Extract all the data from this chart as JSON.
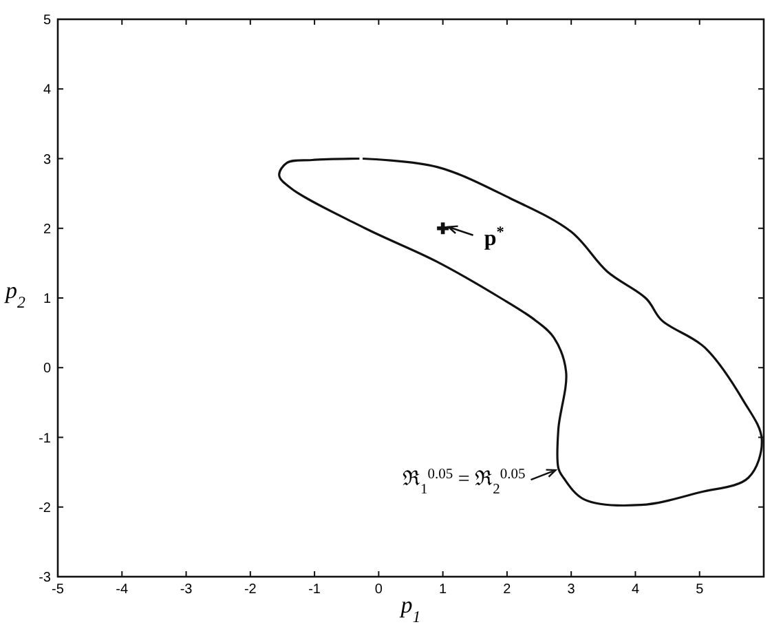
{
  "chart_data": {
    "type": "line",
    "xlabel": "p$_{1}$",
    "ylabel": "p$_{2}$",
    "xlim": [
      -5,
      6
    ],
    "ylim": [
      -3,
      5
    ],
    "xticks": [
      -5,
      -4,
      -3,
      -2,
      -1,
      0,
      1,
      2,
      3,
      4,
      5
    ],
    "yticks": [
      -3,
      -2,
      -1,
      0,
      1,
      2,
      3,
      4,
      5
    ],
    "grid": false,
    "line_style": "solid",
    "x": [
      -0.25,
      0.91,
      2.05,
      3.0,
      3.56,
      4.17,
      4.41,
      5.08,
      5.68,
      5.97,
      5.76,
      5.0,
      4.09,
      3.2,
      2.88,
      2.8,
      2.8,
      2.92,
      2.73,
      2.44,
      1.9,
      0.91,
      -0.21,
      -1.36,
      -1.55,
      -1.43,
      -1.04,
      -0.3
    ],
    "series": [
      {
        "color": "#111111",
        "values": [
          3.0,
          2.88,
          2.43,
          1.95,
          1.38,
          0.99,
          0.68,
          0.29,
          -0.47,
          -1.03,
          -1.58,
          -1.79,
          -1.97,
          -1.89,
          -1.58,
          -1.44,
          -0.88,
          -0.06,
          0.43,
          0.68,
          1.0,
          1.52,
          2.0,
          2.57,
          2.76,
          2.94,
          2.98,
          3.0
        ]
      },
      {
        "type": "scatter",
        "color": "#111111",
        "marker": "cross",
        "x": [
          1.0
        ],
        "values": [
          2.0
        ]
      }
    ],
    "annotations": [
      {
        "text": "p$^{*}$",
        "x": 1.0,
        "y": 2.0
      },
      {
        "text": "ℜ$_{1}$$^{0.05}$ = ℜ$_{2}$$^{0.05}$",
        "x": 2.8,
        "y": -1.45
      }
    ]
  }
}
